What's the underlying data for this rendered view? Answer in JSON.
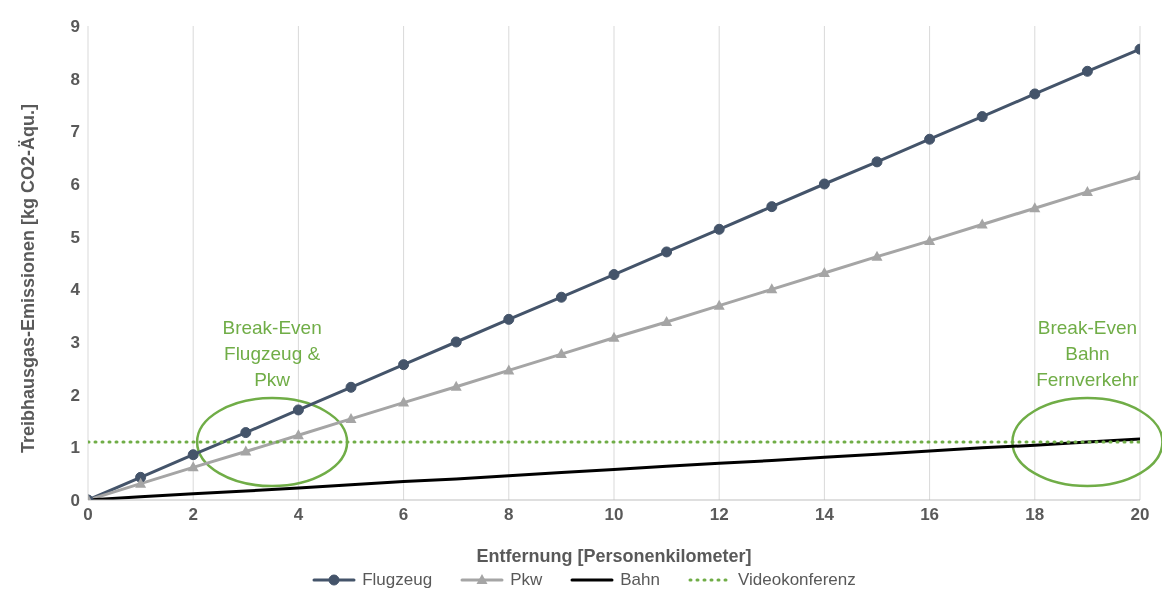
{
  "chart_data": {
    "type": "line",
    "xlabel": "Entfernung [Personenkilometer]",
    "ylabel": "Treibhausgas-Emissionen [kg CO2-Äqu.]",
    "x": [
      0,
      1,
      2,
      3,
      4,
      5,
      6,
      7,
      8,
      9,
      10,
      11,
      12,
      13,
      14,
      15,
      16,
      17,
      18,
      19,
      20
    ],
    "series": [
      {
        "name": "Flugzeug",
        "color": "#44546a",
        "marker": "circle",
        "line_style": "solid",
        "values": [
          0,
          0.43,
          0.86,
          1.28,
          1.71,
          2.14,
          2.57,
          3.0,
          3.43,
          3.85,
          4.28,
          4.71,
          5.14,
          5.57,
          6.0,
          6.42,
          6.85,
          7.28,
          7.71,
          8.14,
          8.56
        ]
      },
      {
        "name": "Pkw",
        "color": "#a5a5a5",
        "marker": "triangle",
        "line_style": "solid",
        "values": [
          0,
          0.31,
          0.62,
          0.92,
          1.23,
          1.54,
          1.85,
          2.15,
          2.46,
          2.77,
          3.08,
          3.38,
          3.69,
          4.0,
          4.31,
          4.62,
          4.92,
          5.23,
          5.54,
          5.85,
          6.15
        ]
      },
      {
        "name": "Bahn",
        "color": "#000000",
        "marker": "none",
        "line_style": "solid",
        "values": [
          0,
          0.06,
          0.12,
          0.17,
          0.23,
          0.29,
          0.35,
          0.4,
          0.46,
          0.52,
          0.58,
          0.64,
          0.7,
          0.75,
          0.81,
          0.87,
          0.93,
          0.99,
          1.04,
          1.1,
          1.16
        ]
      },
      {
        "name": "Videokonferenz",
        "color": "#70ad47",
        "marker": "none",
        "line_style": "dotted",
        "values": [
          1.1,
          1.1,
          1.1,
          1.1,
          1.1,
          1.1,
          1.1,
          1.1,
          1.1,
          1.1,
          1.1,
          1.1,
          1.1,
          1.1,
          1.1,
          1.1,
          1.1,
          1.1,
          1.1,
          1.1,
          1.1
        ]
      }
    ],
    "xlim": [
      0,
      20
    ],
    "xticks": [
      0,
      2,
      4,
      6,
      8,
      10,
      12,
      14,
      16,
      18,
      20
    ],
    "ylim": [
      0,
      9
    ],
    "yticks": [
      0,
      1,
      2,
      3,
      4,
      5,
      6,
      7,
      8,
      9
    ],
    "grid": "x",
    "legend": "bottom",
    "annotations": [
      {
        "text": "Break-Even\nFlugzeug &\nPkw",
        "x": 3.5,
        "y": 1.1
      },
      {
        "text": "Break-Even\nBahn\nFernverkehr",
        "x": 19,
        "y": 1.1
      }
    ]
  }
}
